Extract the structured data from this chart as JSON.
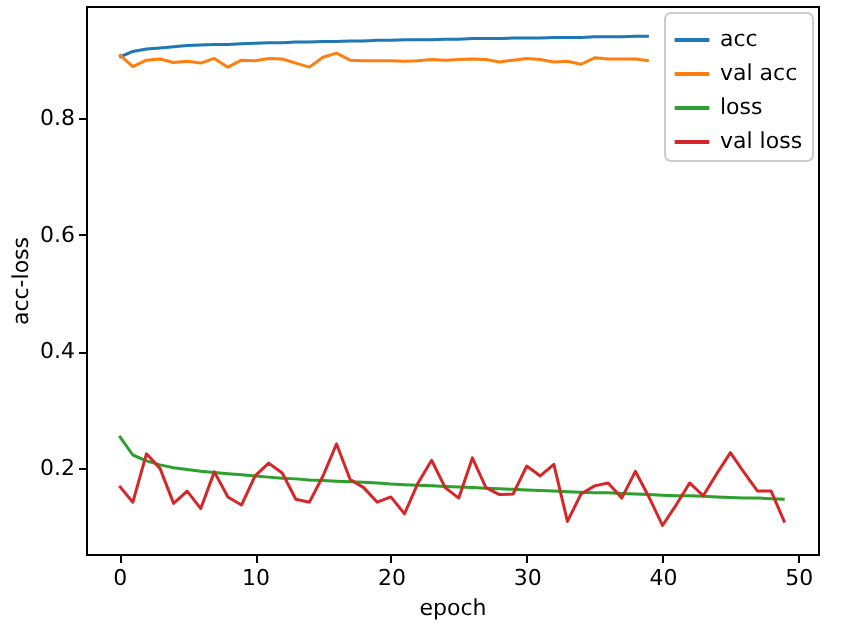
{
  "chart_data": {
    "type": "line",
    "xlabel": "epoch",
    "ylabel": "acc-loss",
    "x": [
      0,
      1,
      2,
      3,
      4,
      5,
      6,
      7,
      8,
      9,
      10,
      11,
      12,
      13,
      14,
      15,
      16,
      17,
      18,
      19,
      20,
      21,
      22,
      23,
      24,
      25,
      26,
      27,
      28,
      29,
      30,
      31,
      32,
      33,
      34,
      35,
      36,
      37,
      38,
      39,
      40,
      41,
      42,
      43,
      44,
      45,
      46,
      47,
      48,
      49
    ],
    "series": [
      {
        "name": "acc",
        "color": "#1f77b4",
        "values": [
          0.905,
          0.915,
          0.919,
          0.921,
          0.923,
          0.925,
          0.926,
          0.927,
          0.927,
          0.928,
          0.929,
          0.93,
          0.93,
          0.931,
          0.931,
          0.932,
          0.932,
          0.933,
          0.933,
          0.934,
          0.934,
          0.935,
          0.935,
          0.935,
          0.936,
          0.936,
          0.937,
          0.937,
          0.937,
          0.938,
          0.938,
          0.938,
          0.939,
          0.939,
          0.939,
          0.94,
          0.94,
          0.94,
          0.941,
          0.941,
          null,
          null,
          null,
          null,
          null,
          null,
          null,
          null,
          null,
          null
        ]
      },
      {
        "name": "val acc",
        "color": "#ff7f0e",
        "values": [
          0.91,
          0.889,
          0.9,
          0.902,
          0.896,
          0.898,
          0.895,
          0.903,
          0.888,
          0.9,
          0.899,
          0.903,
          0.902,
          0.895,
          0.888,
          0.905,
          0.912,
          0.9,
          0.899,
          0.899,
          0.899,
          0.898,
          0.899,
          0.901,
          0.9,
          0.901,
          0.902,
          0.901,
          0.897,
          0.9,
          0.903,
          0.901,
          0.897,
          0.898,
          0.893,
          0.904,
          0.902,
          0.902,
          0.902,
          0.899,
          null,
          null,
          null,
          null,
          null,
          null,
          null,
          null,
          null,
          null
        ]
      },
      {
        "name": " loss",
        "color": "#2ca02c",
        "values": [
          0.255,
          0.222,
          0.212,
          0.205,
          0.2,
          0.197,
          0.194,
          0.192,
          0.19,
          0.188,
          0.186,
          0.184,
          0.182,
          0.181,
          0.179,
          0.178,
          0.177,
          0.176,
          0.175,
          0.174,
          0.172,
          0.171,
          0.17,
          0.169,
          0.168,
          0.167,
          0.166,
          0.165,
          0.164,
          0.163,
          0.162,
          0.161,
          0.16,
          0.159,
          0.158,
          0.157,
          0.157,
          0.156,
          0.155,
          0.154,
          0.153,
          0.152,
          0.152,
          0.151,
          0.15,
          0.149,
          0.148,
          0.148,
          0.147,
          0.146
        ]
      },
      {
        "name": "val loss",
        "color": "#d62728",
        "values": [
          0.169,
          0.141,
          0.224,
          0.199,
          0.139,
          0.16,
          0.13,
          0.193,
          0.15,
          0.136,
          0.186,
          0.208,
          0.191,
          0.146,
          0.141,
          0.186,
          0.241,
          0.18,
          0.166,
          0.141,
          0.15,
          0.121,
          0.174,
          0.213,
          0.166,
          0.148,
          0.217,
          0.166,
          0.154,
          0.155,
          0.203,
          0.186,
          0.206,
          0.108,
          0.155,
          0.169,
          0.174,
          0.148,
          0.194,
          0.15,
          0.101,
          0.136,
          0.174,
          0.152,
          0.19,
          0.226,
          0.192,
          0.16,
          0.16,
          0.106
        ]
      }
    ],
    "xlim": [
      -2.45,
      51.45
    ],
    "xticks": [
      0,
      10,
      20,
      30,
      40,
      50
    ],
    "ylim": [
      0.052,
      0.993
    ],
    "yticks": [
      0.2,
      0.4,
      0.6,
      0.8
    ],
    "grid": false,
    "legend": "top right",
    "line_style": "solid",
    "marker": "none"
  }
}
